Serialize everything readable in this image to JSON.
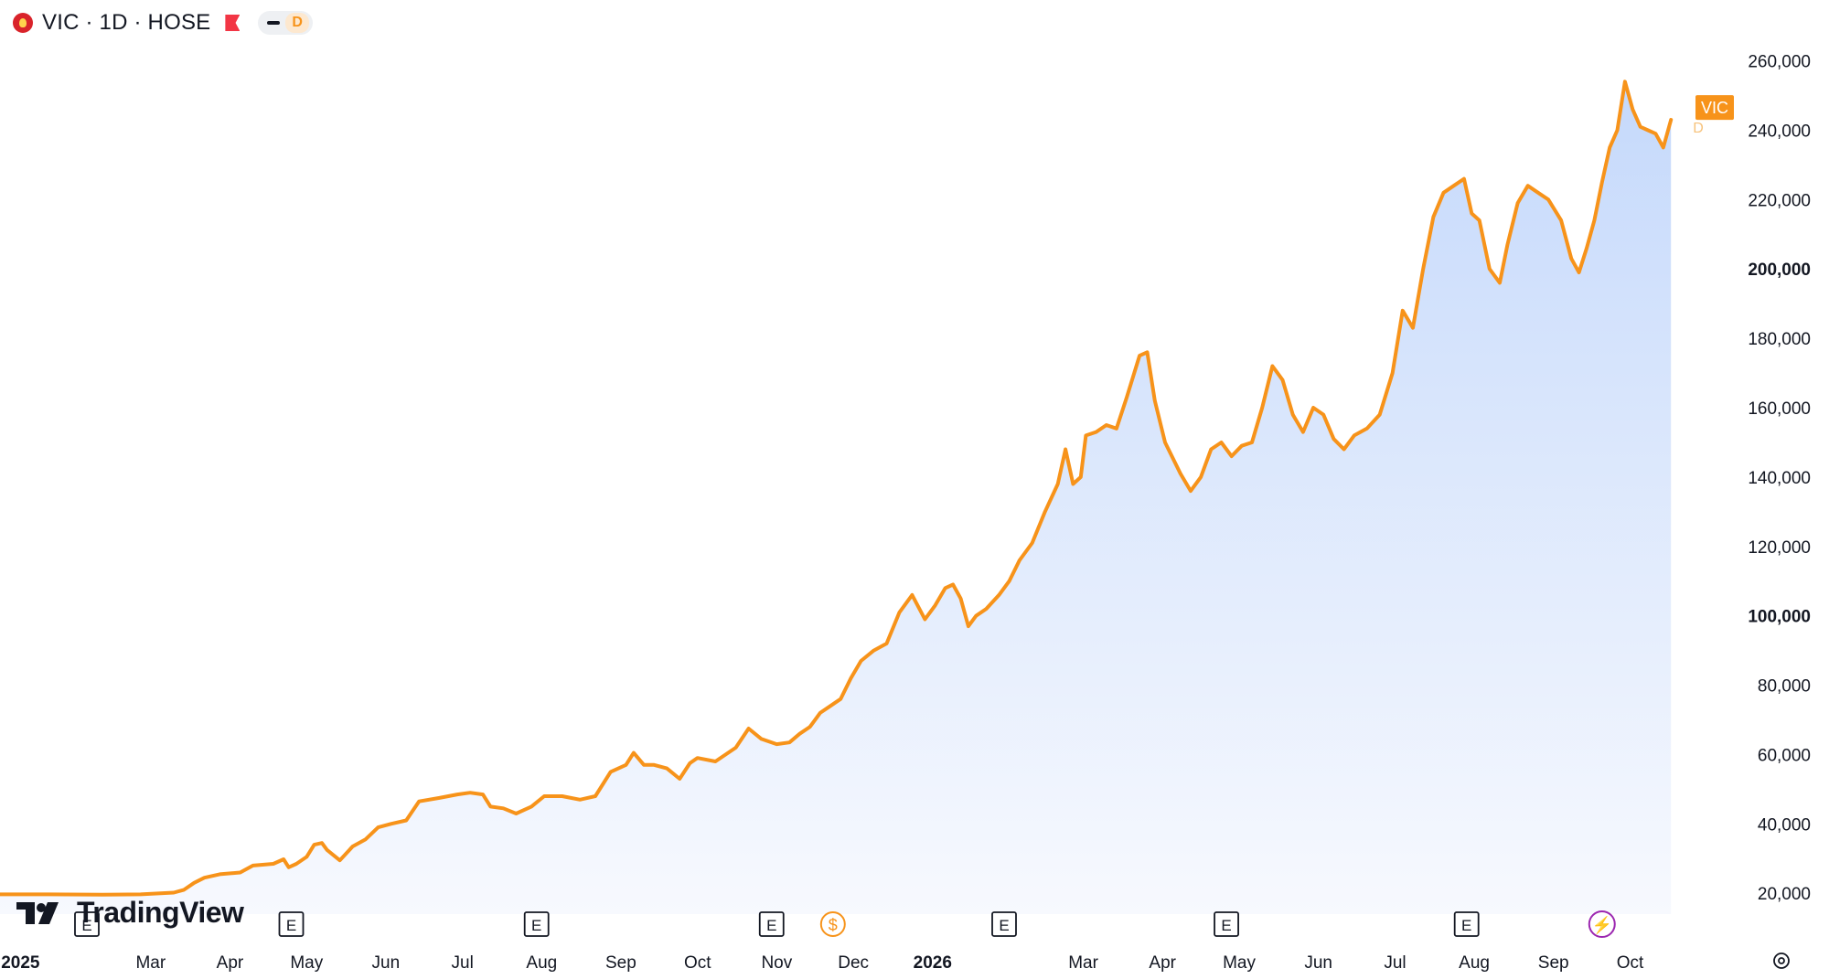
{
  "header": {
    "title": "VIC · 1D · HOSE",
    "interval_badge": "D"
  },
  "branding": {
    "logo_text": "TradingView"
  },
  "price_label": {
    "text": "VIC",
    "overlay": "D",
    "color": "#f7931a"
  },
  "colors": {
    "line": "#f7931a",
    "fill_top": "#c5d9fb",
    "fill_bottom": "#f7f9fe",
    "axis_text": "#131722",
    "event_icon": "#131722",
    "dividend_icon": "#f7931a",
    "split_icon": "#9c27b0"
  },
  "events": {
    "earnings_label": "E",
    "dividend_label": "$",
    "split_label": "⚡",
    "earnings_dates": [
      "2025-02-04",
      "2025-04-25",
      "2025-07-30",
      "2025-10-30",
      "2026-01-29",
      "2026-04-26",
      "2026-07-29"
    ],
    "dividend_dates": [
      "2025-11-23"
    ],
    "split_dates": [
      "2026-09-20"
    ]
  },
  "chart_data": {
    "type": "area",
    "title": "VIC · 1D · HOSE",
    "xlabel": "",
    "ylabel": "",
    "ylim": [
      14000,
      267000
    ],
    "xlim": [
      "2025-01-01",
      "2026-10-18"
    ],
    "y_ticks": [
      {
        "value": 20000,
        "label": "20,000",
        "bold": false
      },
      {
        "value": 40000,
        "label": "40,000",
        "bold": false
      },
      {
        "value": 60000,
        "label": "60,000",
        "bold": false
      },
      {
        "value": 80000,
        "label": "80,000",
        "bold": false
      },
      {
        "value": 100000,
        "label": "100,000",
        "bold": true
      },
      {
        "value": 120000,
        "label": "120,000",
        "bold": false
      },
      {
        "value": 140000,
        "label": "140,000",
        "bold": false
      },
      {
        "value": 160000,
        "label": "160,000",
        "bold": false
      },
      {
        "value": 180000,
        "label": "180,000",
        "bold": false
      },
      {
        "value": 200000,
        "label": "200,000",
        "bold": true
      },
      {
        "value": 220000,
        "label": "220,000",
        "bold": false
      },
      {
        "value": 240000,
        "label": "240,000",
        "bold": false
      },
      {
        "value": 260000,
        "label": "260,000",
        "bold": false
      }
    ],
    "x_ticks": [
      {
        "date": "2025-01-09",
        "label": "2025",
        "bold": true
      },
      {
        "date": "2025-03-01",
        "label": "Mar",
        "bold": false
      },
      {
        "date": "2025-04-01",
        "label": "Apr",
        "bold": false
      },
      {
        "date": "2025-05-01",
        "label": "May",
        "bold": false
      },
      {
        "date": "2025-06-01",
        "label": "Jun",
        "bold": false
      },
      {
        "date": "2025-07-01",
        "label": "Jul",
        "bold": false
      },
      {
        "date": "2025-08-01",
        "label": "Aug",
        "bold": false
      },
      {
        "date": "2025-09-01",
        "label": "Sep",
        "bold": false
      },
      {
        "date": "2025-10-01",
        "label": "Oct",
        "bold": false
      },
      {
        "date": "2025-11-01",
        "label": "Nov",
        "bold": false
      },
      {
        "date": "2025-12-01",
        "label": "Dec",
        "bold": false
      },
      {
        "date": "2026-01-01",
        "label": "2026",
        "bold": true
      },
      {
        "date": "2026-03-01",
        "label": "Mar",
        "bold": false
      },
      {
        "date": "2026-04-01",
        "label": "Apr",
        "bold": false
      },
      {
        "date": "2026-05-01",
        "label": "May",
        "bold": false
      },
      {
        "date": "2026-06-01",
        "label": "Jun",
        "bold": false
      },
      {
        "date": "2026-07-01",
        "label": "Jul",
        "bold": false
      },
      {
        "date": "2026-08-01",
        "label": "Aug",
        "bold": false
      },
      {
        "date": "2026-09-01",
        "label": "Sep",
        "bold": false
      },
      {
        "date": "2026-10-01",
        "label": "Oct",
        "bold": false
      }
    ],
    "series": [
      {
        "values": [
          [
            "2025-01-01",
            19700
          ],
          [
            "2025-01-20",
            19700
          ],
          [
            "2025-02-10",
            19600
          ],
          [
            "2025-02-25",
            19700
          ],
          [
            "2025-03-10",
            20200
          ],
          [
            "2025-03-14",
            21000
          ],
          [
            "2025-03-18",
            23000
          ],
          [
            "2025-03-22",
            24500
          ],
          [
            "2025-03-28",
            25500
          ],
          [
            "2025-04-05",
            26000
          ],
          [
            "2025-04-10",
            28000
          ],
          [
            "2025-04-18",
            28500
          ],
          [
            "2025-04-22",
            29800
          ],
          [
            "2025-04-24",
            27500
          ],
          [
            "2025-04-27",
            28500
          ],
          [
            "2025-05-01",
            30500
          ],
          [
            "2025-05-04",
            34000
          ],
          [
            "2025-05-07",
            34500
          ],
          [
            "2025-05-09",
            32500
          ],
          [
            "2025-05-14",
            29500
          ],
          [
            "2025-05-19",
            33500
          ],
          [
            "2025-05-24",
            35500
          ],
          [
            "2025-05-29",
            39000
          ],
          [
            "2025-06-03",
            40000
          ],
          [
            "2025-06-09",
            41000
          ],
          [
            "2025-06-14",
            46500
          ],
          [
            "2025-06-22",
            47500
          ],
          [
            "2025-06-29",
            48500
          ],
          [
            "2025-07-04",
            49000
          ],
          [
            "2025-07-09",
            48500
          ],
          [
            "2025-07-12",
            45000
          ],
          [
            "2025-07-17",
            44500
          ],
          [
            "2025-07-22",
            43000
          ],
          [
            "2025-07-28",
            45000
          ],
          [
            "2025-08-02",
            48000
          ],
          [
            "2025-08-09",
            48000
          ],
          [
            "2025-08-16",
            47000
          ],
          [
            "2025-08-22",
            48000
          ],
          [
            "2025-08-28",
            55000
          ],
          [
            "2025-09-03",
            57000
          ],
          [
            "2025-09-06",
            60500
          ],
          [
            "2025-09-10",
            57000
          ],
          [
            "2025-09-14",
            57000
          ],
          [
            "2025-09-19",
            56000
          ],
          [
            "2025-09-24",
            53000
          ],
          [
            "2025-09-28",
            57500
          ],
          [
            "2025-10-01",
            59000
          ],
          [
            "2025-10-08",
            58000
          ],
          [
            "2025-10-16",
            62000
          ],
          [
            "2025-10-21",
            67500
          ],
          [
            "2025-10-26",
            64500
          ],
          [
            "2025-11-01",
            63000
          ],
          [
            "2025-11-06",
            63500
          ],
          [
            "2025-11-10",
            66000
          ],
          [
            "2025-11-14",
            68000
          ],
          [
            "2025-11-18",
            72000
          ],
          [
            "2025-11-22",
            74000
          ],
          [
            "2025-11-26",
            76000
          ],
          [
            "2025-11-30",
            82000
          ],
          [
            "2025-12-04",
            87000
          ],
          [
            "2025-12-09",
            90000
          ],
          [
            "2025-12-14",
            92000
          ],
          [
            "2025-12-19",
            101000
          ],
          [
            "2025-12-24",
            106000
          ],
          [
            "2025-12-29",
            99000
          ],
          [
            "2026-01-02",
            103000
          ],
          [
            "2026-01-06",
            108000
          ],
          [
            "2026-01-09",
            109000
          ],
          [
            "2026-01-12",
            105000
          ],
          [
            "2026-01-15",
            97000
          ],
          [
            "2026-01-18",
            100000
          ],
          [
            "2026-01-22",
            102000
          ],
          [
            "2026-01-27",
            106000
          ],
          [
            "2026-01-31",
            110000
          ],
          [
            "2026-02-04",
            116000
          ],
          [
            "2026-02-09",
            121000
          ],
          [
            "2026-02-14",
            130000
          ],
          [
            "2026-02-19",
            138000
          ],
          [
            "2026-02-22",
            148000
          ],
          [
            "2026-02-25",
            138000
          ],
          [
            "2026-02-28",
            140000
          ],
          [
            "2026-03-02",
            152000
          ],
          [
            "2026-03-06",
            153000
          ],
          [
            "2026-03-10",
            155000
          ],
          [
            "2026-03-14",
            154000
          ],
          [
            "2026-03-18",
            163000
          ],
          [
            "2026-03-23",
            175000
          ],
          [
            "2026-03-26",
            176000
          ],
          [
            "2026-03-29",
            162000
          ],
          [
            "2026-04-02",
            150000
          ],
          [
            "2026-04-08",
            141000
          ],
          [
            "2026-04-12",
            136000
          ],
          [
            "2026-04-16",
            140000
          ],
          [
            "2026-04-20",
            148000
          ],
          [
            "2026-04-24",
            150000
          ],
          [
            "2026-04-28",
            146000
          ],
          [
            "2026-05-02",
            149000
          ],
          [
            "2026-05-06",
            150000
          ],
          [
            "2026-05-10",
            160000
          ],
          [
            "2026-05-14",
            172000
          ],
          [
            "2026-05-18",
            168000
          ],
          [
            "2026-05-22",
            158000
          ],
          [
            "2026-05-26",
            153000
          ],
          [
            "2026-05-30",
            160000
          ],
          [
            "2026-06-03",
            158000
          ],
          [
            "2026-06-07",
            151000
          ],
          [
            "2026-06-11",
            148000
          ],
          [
            "2026-06-15",
            152000
          ],
          [
            "2026-06-20",
            154000
          ],
          [
            "2026-06-25",
            158000
          ],
          [
            "2026-06-30",
            170000
          ],
          [
            "2026-07-04",
            188000
          ],
          [
            "2026-07-08",
            183000
          ],
          [
            "2026-07-12",
            200000
          ],
          [
            "2026-07-16",
            215000
          ],
          [
            "2026-07-20",
            222000
          ],
          [
            "2026-07-24",
            224000
          ],
          [
            "2026-07-28",
            226000
          ],
          [
            "2026-07-31",
            216000
          ],
          [
            "2026-08-03",
            214000
          ],
          [
            "2026-08-07",
            200000
          ],
          [
            "2026-08-11",
            196000
          ],
          [
            "2026-08-14",
            207000
          ],
          [
            "2026-08-18",
            219000
          ],
          [
            "2026-08-22",
            224000
          ],
          [
            "2026-08-26",
            222000
          ],
          [
            "2026-08-30",
            220000
          ],
          [
            "2026-09-04",
            214000
          ],
          [
            "2026-09-08",
            203000
          ],
          [
            "2026-09-11",
            199000
          ],
          [
            "2026-09-14",
            206000
          ],
          [
            "2026-09-17",
            214000
          ],
          [
            "2026-09-20",
            225000
          ],
          [
            "2026-09-23",
            235000
          ],
          [
            "2026-09-26",
            240000
          ],
          [
            "2026-09-29",
            254000
          ],
          [
            "2026-10-02",
            246000
          ],
          [
            "2026-10-05",
            241000
          ],
          [
            "2026-10-08",
            240000
          ],
          [
            "2026-10-11",
            239000
          ],
          [
            "2026-10-14",
            235000
          ],
          [
            "2026-10-17",
            243000
          ]
        ]
      }
    ],
    "grid": false,
    "legend": "none"
  }
}
